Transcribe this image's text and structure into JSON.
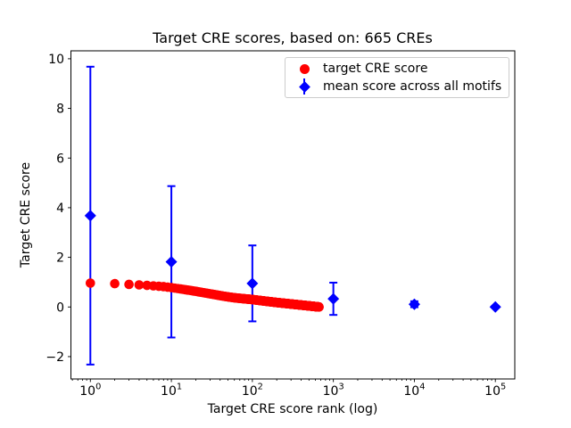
{
  "chart_data": {
    "type": "scatter",
    "title": "Target CRE scores, based on: 665 CREs",
    "xlabel": "Target CRE score rank (log)",
    "ylabel": "Target CRE score",
    "x_scale": "log",
    "xlim_log10": [
      -0.24,
      5.24
    ],
    "ylim": [
      -2.9,
      10.32
    ],
    "grid": false,
    "y_ticks": [
      {
        "value": -2,
        "label": "−2"
      },
      {
        "value": 0,
        "label": "0"
      },
      {
        "value": 2,
        "label": "2"
      },
      {
        "value": 4,
        "label": "4"
      },
      {
        "value": 6,
        "label": "6"
      },
      {
        "value": 8,
        "label": "8"
      },
      {
        "value": 10,
        "label": "10"
      }
    ],
    "x_major_ticks": [
      {
        "value": 1,
        "base": "10",
        "exponent": "0"
      },
      {
        "value": 10,
        "base": "10",
        "exponent": "1"
      },
      {
        "value": 100,
        "base": "10",
        "exponent": "2"
      },
      {
        "value": 1000,
        "base": "10",
        "exponent": "3"
      },
      {
        "value": 10000,
        "base": "10",
        "exponent": "4"
      },
      {
        "value": 100000,
        "base": "10",
        "exponent": "5"
      }
    ],
    "series": [
      {
        "name": "target CRE score",
        "marker": "circle",
        "color": "#ff0000",
        "n_points": 665,
        "rank_range": [
          1,
          665
        ],
        "control_points": [
          [
            1,
            0.96
          ],
          [
            2,
            0.94
          ],
          [
            3,
            0.91
          ],
          [
            4,
            0.89
          ],
          [
            5,
            0.87
          ],
          [
            6,
            0.85
          ],
          [
            8,
            0.82
          ],
          [
            10,
            0.78
          ],
          [
            14,
            0.71
          ],
          [
            20,
            0.63
          ],
          [
            30,
            0.53
          ],
          [
            45,
            0.43
          ],
          [
            60,
            0.37
          ],
          [
            80,
            0.33
          ],
          [
            100,
            0.3
          ],
          [
            140,
            0.24
          ],
          [
            200,
            0.18
          ],
          [
            300,
            0.12
          ],
          [
            450,
            0.06
          ],
          [
            550,
            0.03
          ],
          [
            665,
            0.0
          ]
        ]
      },
      {
        "name": "mean score across all motifs",
        "marker": "diamond",
        "color": "#0000ff",
        "x": [
          1,
          10,
          100,
          1000,
          10000,
          100000
        ],
        "y": [
          3.68,
          1.82,
          0.95,
          0.33,
          0.11,
          0.0
        ],
        "yerr": [
          6.0,
          3.05,
          1.53,
          0.65,
          0.12,
          0.04
        ]
      }
    ],
    "legend": {
      "position": "upper right"
    }
  }
}
